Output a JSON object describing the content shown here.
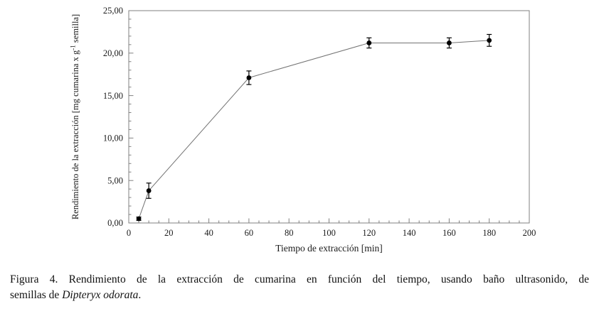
{
  "figure": {
    "caption": {
      "line1": "Figura 4. Rendimiento de la extracción de cumarina en función del tiempo, usando baño ultrasonido, de",
      "line2_prefix": "semillas de ",
      "species": "Dipteryx odorata",
      "line2_suffix": "."
    }
  },
  "chart_data": {
    "type": "line",
    "title": "",
    "xlabel": "Tiempo de extracción [min]",
    "ylabel": "Rendimiento de la extracción [mg cumarina x g⁻¹ semilla]",
    "ylabel_render": {
      "prefix": "Rendimiento de la extracción [mg cumarina x g",
      "superscript": "-1",
      "suffix": " semilla]"
    },
    "xlim": [
      0,
      200
    ],
    "ylim": [
      0,
      25
    ],
    "x_tick_values": [
      0,
      20,
      40,
      60,
      80,
      100,
      120,
      140,
      160,
      180,
      200
    ],
    "x_tick_labels": [
      "0",
      "20",
      "40",
      "60",
      "80",
      "100",
      "120",
      "140",
      "160",
      "180",
      "200"
    ],
    "x_minor_step": 5,
    "y_tick_values": [
      0,
      5,
      10,
      15,
      20,
      25
    ],
    "y_tick_labels": [
      "0,00",
      "5,00",
      "10,00",
      "15,00",
      "20,00",
      "25,00"
    ],
    "y_minor_step": 1,
    "grid": false,
    "legend": false,
    "series": [
      {
        "name": "Rendimiento de la extracción",
        "x": [
          5,
          10,
          60,
          120,
          160,
          180
        ],
        "y": [
          0.5,
          3.8,
          17.1,
          21.2,
          21.2,
          21.5
        ],
        "y_err": [
          0.2,
          0.9,
          0.8,
          0.6,
          0.6,
          0.7
        ],
        "marker": "filled-circle"
      }
    ],
    "colors": {
      "axis": "#808080",
      "line": "#737373",
      "marker": "#000000",
      "text": "#1a1a1a"
    }
  }
}
